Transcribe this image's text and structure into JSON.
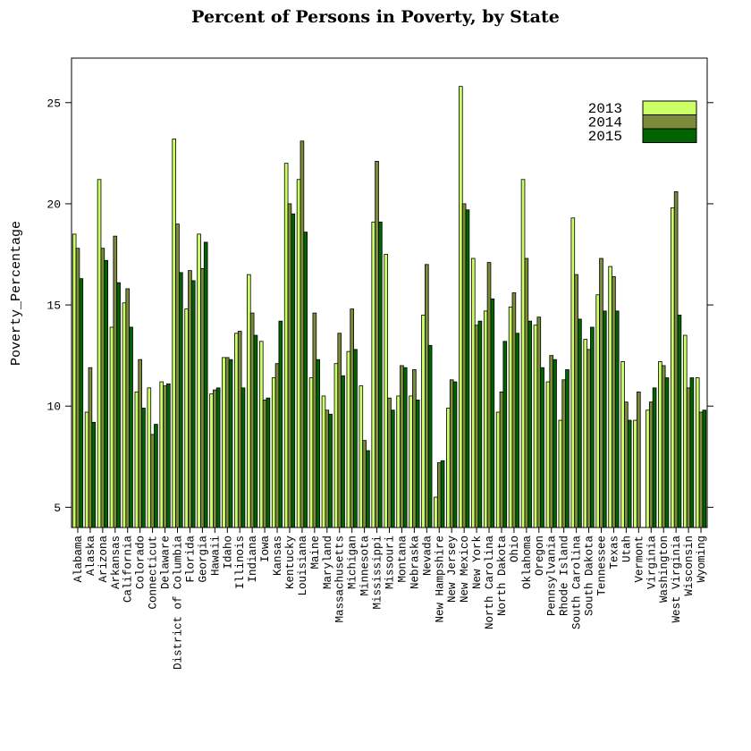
{
  "chart_data": {
    "type": "bar",
    "title": "Percent of Persons in Poverty, by State",
    "xlabel": "",
    "ylabel": "Poverty_Percentage",
    "ylim": [
      4.0,
      27.2
    ],
    "yticks": [
      5,
      10,
      15,
      20,
      25
    ],
    "grid": false,
    "legend_position": "top-right",
    "categories": [
      "Alabama",
      "Alaska",
      "Arizona",
      "Arkansas",
      "California",
      "Colorado",
      "Connecticut",
      "Delaware",
      "District of Columbia",
      "Florida",
      "Georgia",
      "Hawaii",
      "Idaho",
      "Illinois",
      "Indiana",
      "Iowa",
      "Kansas",
      "Kentucky",
      "Louisiana",
      "Maine",
      "Maryland",
      "Massachusetts",
      "Michigan",
      "Minnesota",
      "Mississippi",
      "Missouri",
      "Montana",
      "Nebraska",
      "Nevada",
      "New Hampshire",
      "New Jersey",
      "New Mexico",
      "New York",
      "North Carolina",
      "North Dakota",
      "Ohio",
      "Oklahoma",
      "Oregon",
      "Pennsylvania",
      "Rhode Island",
      "South Carolina",
      "South Dakota",
      "Tennessee",
      "Texas",
      "Utah",
      "Vermont",
      "Virginia",
      "Washington",
      "West Virginia",
      "Wisconsin",
      "Wyoming"
    ],
    "series": [
      {
        "name": "2013",
        "color": "#ccff66",
        "values": [
          18.5,
          9.7,
          21.2,
          13.9,
          15.1,
          10.7,
          10.9,
          11.2,
          23.2,
          14.8,
          18.5,
          10.6,
          12.4,
          13.6,
          16.5,
          13.2,
          11.4,
          22.0,
          21.2,
          11.4,
          10.5,
          12.1,
          12.7,
          11.0,
          19.1,
          17.5,
          10.5,
          10.5,
          14.5,
          5.5,
          9.9,
          25.8,
          17.3,
          14.7,
          9.7,
          14.9,
          21.2,
          14.0,
          11.2,
          9.3,
          19.3,
          13.3,
          15.5,
          16.9,
          12.2,
          9.3,
          9.8,
          12.2,
          19.8,
          13.5,
          11.4
        ]
      },
      {
        "name": "2014",
        "color": "#7a8c3a",
        "values": [
          17.8,
          11.9,
          17.8,
          18.4,
          15.8,
          12.3,
          8.6,
          11.0,
          19.0,
          16.7,
          16.8,
          10.8,
          12.4,
          13.7,
          14.6,
          10.3,
          12.1,
          20.0,
          23.1,
          14.6,
          9.8,
          13.6,
          14.8,
          8.3,
          22.1,
          10.4,
          12.0,
          11.8,
          17.0,
          7.2,
          11.3,
          20.0,
          14.0,
          17.1,
          10.7,
          15.6,
          17.3,
          14.4,
          12.5,
          11.3,
          16.5,
          12.8,
          17.3,
          16.4,
          10.2,
          10.7,
          10.2,
          12.0,
          20.6,
          10.9,
          9.7
        ]
      },
      {
        "name": "2015",
        "color": "#006400",
        "values": [
          16.3,
          9.2,
          17.2,
          16.1,
          13.9,
          9.9,
          9.1,
          11.1,
          16.6,
          16.2,
          18.1,
          10.9,
          12.3,
          10.9,
          13.5,
          10.4,
          14.2,
          19.5,
          18.6,
          12.3,
          9.6,
          11.5,
          12.8,
          7.8,
          19.1,
          9.8,
          11.9,
          10.3,
          13.0,
          7.3,
          11.2,
          19.7,
          14.2,
          15.3,
          13.2,
          13.6,
          14.2,
          11.9,
          12.3,
          11.8,
          14.3,
          13.9,
          14.7,
          14.7,
          9.3,
          null,
          10.9,
          11.4,
          14.5,
          11.4,
          9.8
        ]
      }
    ]
  }
}
